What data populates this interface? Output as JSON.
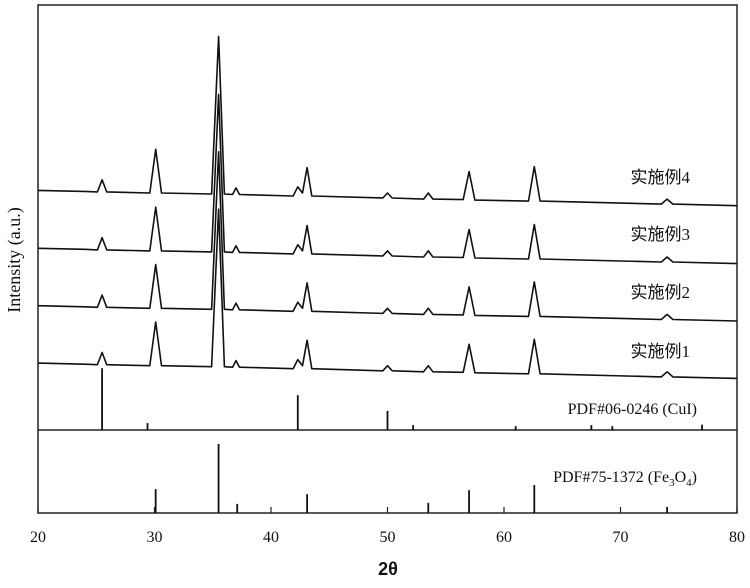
{
  "chart_data": {
    "type": "line",
    "y_label": "Intensity (a.u.)",
    "x_label": "2θ",
    "xlim": [
      20,
      80
    ],
    "xticks": [
      20,
      30,
      40,
      50,
      60,
      70,
      80
    ],
    "ylim": [
      0,
      100
    ],
    "x": [
      20,
      24,
      25.1,
      25.5,
      25.9,
      29.6,
      30.1,
      30.6,
      34.9,
      35.5,
      36.0,
      36.7,
      37.0,
      37.3,
      41.9,
      42.3,
      42.7,
      43.1,
      43.5,
      49.6,
      50.0,
      50.4,
      53.1,
      53.5,
      53.9,
      56.5,
      57.0,
      57.5,
      62.1,
      62.6,
      63.1,
      73.5,
      74.0,
      74.5,
      80
    ],
    "series": [
      {
        "name": "实施例1",
        "color": "#111111",
        "values": [
          29.5,
          29.3,
          29.2,
          31.6,
          29.2,
          29.0,
          37.6,
          29.0,
          28.8,
          59.8,
          28.8,
          28.7,
          30.0,
          28.7,
          28.4,
          30.2,
          29.0,
          34.0,
          28.4,
          28.0,
          29.0,
          28.0,
          27.8,
          29.0,
          27.8,
          27.7,
          33.2,
          27.6,
          27.4,
          34.2,
          27.4,
          26.8,
          27.8,
          26.8,
          26.5
        ]
      },
      {
        "name": "实施例2",
        "color": "#111111",
        "values": [
          40.8,
          40.6,
          40.5,
          42.9,
          40.5,
          40.3,
          48.9,
          40.3,
          40.1,
          71.1,
          40.1,
          40.0,
          41.3,
          40.0,
          39.7,
          41.5,
          40.3,
          45.3,
          39.7,
          39.3,
          40.3,
          39.3,
          39.1,
          40.3,
          39.1,
          39.0,
          44.5,
          38.9,
          38.7,
          45.5,
          38.7,
          38.1,
          39.1,
          38.1,
          37.8
        ]
      },
      {
        "name": "实施例3",
        "color": "#111111",
        "values": [
          52.1,
          51.9,
          51.8,
          54.2,
          51.8,
          51.6,
          60.2,
          51.6,
          51.4,
          82.4,
          51.4,
          51.3,
          52.6,
          51.3,
          51.0,
          52.8,
          51.6,
          56.6,
          51.0,
          50.6,
          51.6,
          50.6,
          50.4,
          51.6,
          50.4,
          50.3,
          55.8,
          50.2,
          50.0,
          56.8,
          50.0,
          49.4,
          50.4,
          49.4,
          49.1
        ]
      },
      {
        "name": "实施例4",
        "color": "#111111",
        "values": [
          63.5,
          63.3,
          63.2,
          65.6,
          63.2,
          63.0,
          71.6,
          63.0,
          62.8,
          93.8,
          62.8,
          62.7,
          64.0,
          62.7,
          62.4,
          64.2,
          63.0,
          68.0,
          62.4,
          62.0,
          63.0,
          62.0,
          61.8,
          63.0,
          61.8,
          61.7,
          67.2,
          61.6,
          61.4,
          68.2,
          61.4,
          60.8,
          61.8,
          60.8,
          60.5
        ]
      }
    ],
    "references": [
      {
        "name_parts": [
          "PDF#06-0246 (CuI)"
        ],
        "x": [
          25.5,
          29.4,
          42.3,
          50.0,
          52.2,
          61.0,
          67.5,
          69.3,
          77.0
        ],
        "values": [
          28.5,
          17.7,
          23.2,
          20.1,
          17.3,
          17.1,
          17.3,
          17.1,
          17.4
        ]
      },
      {
        "name_parts": [
          "PDF#75-1372 (Fe",
          "3",
          "O",
          "4",
          ")"
        ],
        "x": [
          30.1,
          35.5,
          37.1,
          43.1,
          53.5,
          57.0,
          62.6,
          74.0
        ],
        "values": [
          4.7,
          13.6,
          1.8,
          3.7,
          2.0,
          4.5,
          5.5,
          1.2
        ]
      }
    ]
  }
}
